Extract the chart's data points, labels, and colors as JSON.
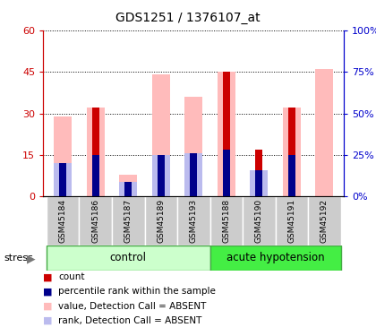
{
  "title": "GDS1251 / 1376107_at",
  "samples": [
    "GSM45184",
    "GSM45186",
    "GSM45187",
    "GSM45189",
    "GSM45193",
    "GSM45188",
    "GSM45190",
    "GSM45191",
    "GSM45192"
  ],
  "n_control": 5,
  "n_hypotension": 4,
  "stress_label": "stress",
  "red_values": [
    0,
    32,
    1,
    0,
    0,
    45,
    17,
    32,
    0
  ],
  "blue_values": [
    20,
    25,
    9,
    25,
    26,
    28,
    16,
    25,
    0
  ],
  "pink_values": [
    29,
    32,
    8,
    44,
    36,
    45,
    0,
    32,
    46
  ],
  "lavender_values": [
    20,
    0,
    9,
    25,
    26,
    0,
    16,
    0,
    0
  ],
  "ylim_left": [
    0,
    60
  ],
  "ylim_right": [
    0,
    100
  ],
  "yticks_left": [
    0,
    15,
    30,
    45,
    60
  ],
  "ytick_labels_left": [
    "0",
    "15",
    "30",
    "45",
    "60"
  ],
  "ytick_labels_right": [
    "0%",
    "25%",
    "50%",
    "75%",
    "100%"
  ],
  "left_axis_color": "#cc0000",
  "right_axis_color": "#0000cc",
  "wide_bar_width": 0.55,
  "narrow_bar_width": 0.22,
  "legend_labels": [
    "count",
    "percentile rank within the sample",
    "value, Detection Call = ABSENT",
    "rank, Detection Call = ABSENT"
  ],
  "legend_colors": [
    "#cc0000",
    "#00008b",
    "#ffbbbb",
    "#bbbbee"
  ],
  "control_bg": "#ccffcc",
  "hypotension_bg": "#44ee44",
  "sample_bg": "#cccccc",
  "group_border": "#44aa44"
}
